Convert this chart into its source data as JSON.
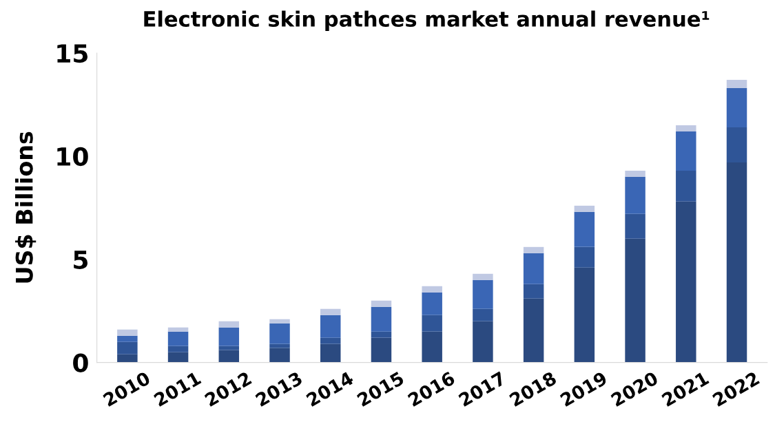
{
  "chart_data": {
    "type": "bar",
    "stacked": true,
    "title": "Electronic skin pathces market annual revenue¹",
    "ylabel": "US$ Billions",
    "categories": [
      "2010",
      "2011",
      "2012",
      "2013",
      "2014",
      "2015",
      "2016",
      "2017",
      "2018",
      "2019",
      "2020",
      "2021",
      "2022"
    ],
    "series": [
      {
        "color": "#2b4a80",
        "values": [
          0.4,
          0.5,
          0.6,
          0.7,
          0.9,
          1.2,
          1.5,
          2.0,
          3.1,
          4.6,
          6.0,
          7.8,
          9.7
        ]
      },
      {
        "color": "#2f5597",
        "values": [
          0.6,
          0.3,
          0.2,
          0.2,
          0.3,
          0.3,
          0.8,
          0.6,
          0.7,
          1.0,
          1.2,
          1.5,
          1.7
        ]
      },
      {
        "color": "#3a66b5",
        "values": [
          0.3,
          0.7,
          0.9,
          1.0,
          1.1,
          1.2,
          1.1,
          1.4,
          1.5,
          1.7,
          1.8,
          1.9,
          1.9
        ]
      },
      {
        "color": "#c0c9e3",
        "values": [
          0.3,
          0.2,
          0.3,
          0.2,
          0.3,
          0.3,
          0.3,
          0.3,
          0.3,
          0.3,
          0.3,
          0.3,
          0.4
        ]
      }
    ],
    "ylim": [
      0,
      15
    ],
    "yticks": [
      0,
      5,
      10,
      15
    ],
    "grid": false,
    "legend": false
  }
}
